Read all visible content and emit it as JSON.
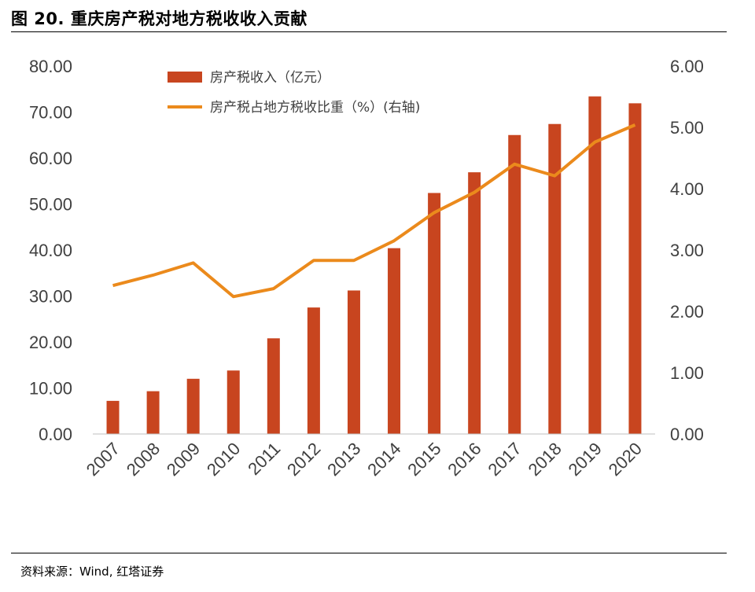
{
  "figure": {
    "title": "图 20. 重庆房产税对地方税收收入贡献",
    "source": "资料来源：Wind, 红塔证券"
  },
  "colors": {
    "bar": "#C8451F",
    "line": "#EB8A1C",
    "axis_text": "#404040",
    "baseline": "#BFBFBF"
  },
  "chart_data": {
    "type": "bar",
    "categories": [
      "2007",
      "2008",
      "2009",
      "2010",
      "2011",
      "2012",
      "2013",
      "2014",
      "2015",
      "2016",
      "2017",
      "2018",
      "2019",
      "2020"
    ],
    "series": [
      {
        "name": "房产税收入（亿元）",
        "type": "bar",
        "axis": "left",
        "values": [
          7.2,
          9.3,
          12.0,
          13.8,
          20.8,
          27.5,
          31.2,
          40.4,
          52.4,
          56.9,
          65.0,
          67.4,
          73.4,
          71.9
        ]
      },
      {
        "name": "房产税占地方税收比重（%）(右轴)",
        "type": "line",
        "axis": "right",
        "values": [
          2.42,
          2.59,
          2.79,
          2.24,
          2.37,
          2.83,
          2.83,
          3.15,
          3.61,
          3.94,
          4.4,
          4.21,
          4.76,
          5.04
        ]
      }
    ],
    "y_left": {
      "range": [
        0,
        80
      ],
      "ticks": [
        "0.00",
        "10.00",
        "20.00",
        "30.00",
        "40.00",
        "50.00",
        "60.00",
        "70.00",
        "80.00"
      ]
    },
    "y_right": {
      "range": [
        0,
        6
      ],
      "ticks": [
        "0.00",
        "1.00",
        "2.00",
        "3.00",
        "4.00",
        "5.00",
        "6.00"
      ]
    },
    "grid": false,
    "legend_position": "top-left"
  }
}
